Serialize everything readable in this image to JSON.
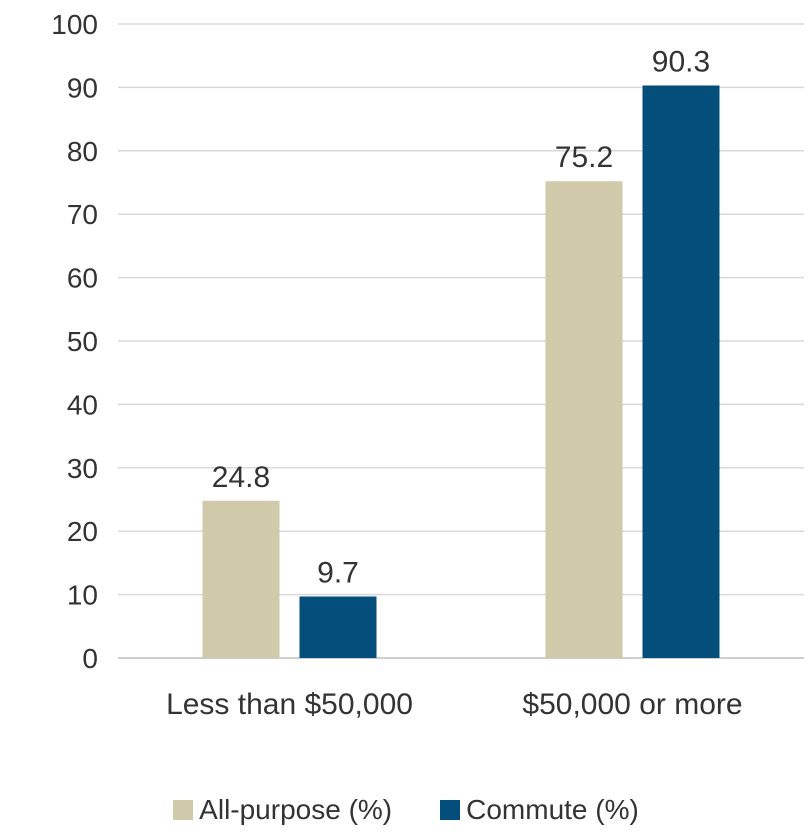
{
  "chart_data": {
    "type": "bar",
    "title": "",
    "xlabel": "",
    "ylabel": "",
    "ylim": [
      0,
      100
    ],
    "yticks": [
      0,
      10,
      20,
      30,
      40,
      50,
      60,
      70,
      80,
      90,
      100
    ],
    "grid": true,
    "legend_position": "bottom",
    "categories": [
      "Less than $50,000",
      "$50,000 or more"
    ],
    "series": [
      {
        "name": "All-purpose (%)",
        "color": "#d0c9aa",
        "values": [
          24.8,
          75.2
        ],
        "labels": [
          "24.8",
          "75.2"
        ]
      },
      {
        "name": "Commute (%)",
        "color": "#044e7b",
        "values": [
          9.7,
          90.3
        ],
        "labels": [
          "9.7",
          "90.3"
        ]
      }
    ]
  }
}
